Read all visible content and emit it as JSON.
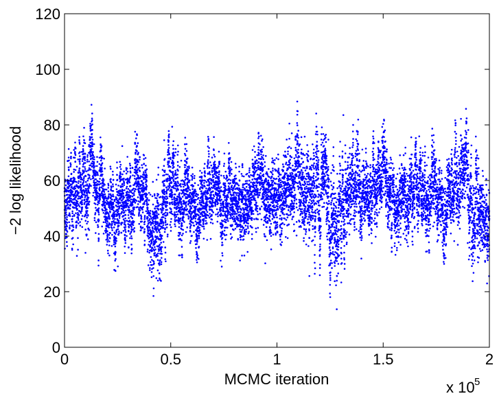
{
  "chart_data": {
    "type": "scatter",
    "title": "",
    "xlabel": "MCMC iteration",
    "ylabel": "−2 log likelihood",
    "xlim": [
      0,
      200000
    ],
    "ylim": [
      0,
      120
    ],
    "x_scale_multiplier_base": "x 10",
    "x_scale_multiplier_exponent": "5",
    "x_ticks": [
      0,
      50000,
      100000,
      150000,
      200000
    ],
    "x_tick_labels": [
      "0",
      "0.5",
      "1",
      "1.5",
      "2"
    ],
    "y_ticks": [
      0,
      20,
      40,
      60,
      80,
      100,
      120
    ],
    "y_tick_labels": [
      "0",
      "20",
      "40",
      "60",
      "80",
      "100",
      "120"
    ],
    "grid": false,
    "marker_color": "#0000ff",
    "trace_profile": {
      "x": [
        0,
        5000,
        10000,
        13000,
        16000,
        20000,
        25000,
        30000,
        35000,
        38000,
        42000,
        45000,
        50000,
        55000,
        60000,
        65000,
        70000,
        75000,
        80000,
        85000,
        90000,
        95000,
        100000,
        105000,
        110000,
        115000,
        120000,
        125000,
        128000,
        132000,
        137000,
        142000,
        148000,
        153000,
        158000,
        163000,
        168000,
        173000,
        178000,
        183000,
        187000,
        190000,
        192000,
        195000,
        200000
      ],
      "y": [
        52,
        55,
        60,
        66,
        54,
        48,
        52,
        50,
        54,
        58,
        38,
        42,
        55,
        54,
        52,
        50,
        58,
        50,
        54,
        52,
        54,
        56,
        56,
        55,
        62,
        58,
        54,
        52,
        38,
        52,
        56,
        57,
        60,
        56,
        53,
        52,
        54,
        56,
        52,
        55,
        60,
        66,
        40,
        50,
        46
      ]
    },
    "spread_profile": {
      "x": [
        0,
        10000,
        20000,
        40000,
        42000,
        60000,
        100000,
        110000,
        128000,
        140000,
        180000,
        191000,
        193000,
        200000
      ],
      "y": [
        11,
        12,
        10,
        11,
        14,
        10,
        11,
        13,
        15,
        11,
        11,
        14,
        15,
        11
      ]
    },
    "sample_count": 9000
  }
}
